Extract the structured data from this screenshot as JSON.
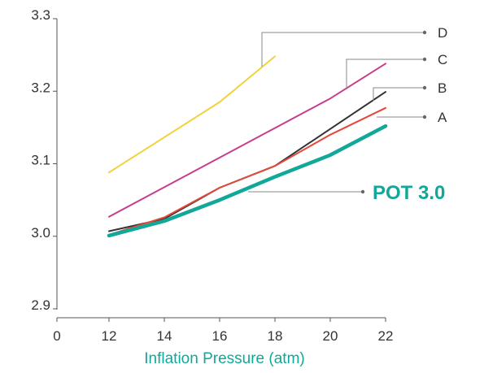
{
  "chart_data": {
    "type": "line",
    "title": "",
    "xlabel": "Inflation Pressure (atm)",
    "ylabel": "",
    "x_ticks": [
      "0",
      "12",
      "14",
      "16",
      "18",
      "20",
      "22"
    ],
    "y_ticks": [
      "2.9",
      "3.0",
      "3.1",
      "3.2",
      "3.3"
    ],
    "ylim": [
      2.9,
      3.3
    ],
    "grid": false,
    "legend": "direct labels on right",
    "series": [
      {
        "name": "D",
        "color": "#f0d23a",
        "x": [
          12,
          16,
          18
        ],
        "y": [
          3.088,
          3.185,
          3.248
        ]
      },
      {
        "name": "C",
        "color": "#c83c8c",
        "x": [
          12,
          20,
          22
        ],
        "y": [
          3.027,
          3.19,
          3.238
        ]
      },
      {
        "name": "B",
        "color": "#333333",
        "x": [
          12,
          14,
          16,
          18,
          22
        ],
        "y": [
          3.007,
          3.024,
          3.067,
          3.097,
          3.199
        ]
      },
      {
        "name": "A",
        "color": "#e5483a",
        "x": [
          12,
          14,
          16,
          18,
          20,
          22
        ],
        "y": [
          3.002,
          3.026,
          3.067,
          3.097,
          3.14,
          3.177
        ]
      },
      {
        "name": "POT 3.0",
        "color": "#11a89a",
        "x": [
          12,
          14,
          16,
          18,
          20,
          22
        ],
        "y": [
          3.001,
          3.021,
          3.05,
          3.082,
          3.112,
          3.152
        ]
      }
    ]
  }
}
